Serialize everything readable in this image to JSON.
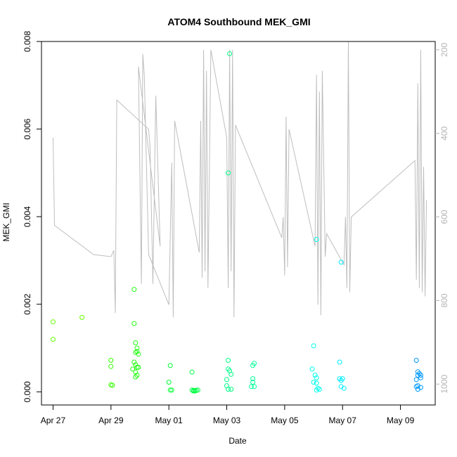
{
  "chart_data": {
    "type": "scatter",
    "title": "ATOM4 Southbound MEK_GMI",
    "xlabel": "Date",
    "ylabel": "MEK_GMI",
    "x_tick_labels": [
      "Apr 27",
      "Apr 29",
      "May 01",
      "May 03",
      "May 05",
      "May 07",
      "May 09"
    ],
    "x_ticks_day": [
      27,
      29,
      31,
      33,
      35,
      37,
      39
    ],
    "xlim_day": [
      26.6,
      40.2
    ],
    "ylim": [
      -0.0003,
      0.008
    ],
    "y_ticks": [
      0.0,
      0.002,
      0.004,
      0.006,
      0.008
    ],
    "y_tick_labels": [
      "0.000",
      "0.002",
      "0.004",
      "0.006",
      "0.008"
    ],
    "y2_lim": [
      1050,
      180
    ],
    "y2_ticks": [
      200,
      400,
      600,
      800,
      1000
    ],
    "y2_tick_labels": [
      "200",
      "400",
      "600",
      "800",
      "1000"
    ],
    "line_color": "#bebebe",
    "series": [
      {
        "kind": "points",
        "values": [
          [
            27.0,
            0.0016,
            "#66ff00"
          ],
          [
            27.0,
            0.0012,
            "#66ff00"
          ],
          [
            28.0,
            0.0017,
            "#66ff00"
          ],
          [
            29.0,
            0.00072,
            "#33ff00"
          ],
          [
            29.0,
            0.00058,
            "#33ff00"
          ],
          [
            29.05,
            0.00015,
            "#33ff00"
          ],
          [
            29.0,
            0.00016,
            "#33ff00"
          ],
          [
            29.8,
            0.00234,
            "#22ff11"
          ],
          [
            29.8,
            0.00156,
            "#22ff11"
          ],
          [
            29.85,
            0.00112,
            "#22ff11"
          ],
          [
            29.9,
            0.001,
            "#22ff11"
          ],
          [
            29.9,
            0.00092,
            "#22ff11"
          ],
          [
            29.85,
            0.0009,
            "#22ff11"
          ],
          [
            29.95,
            0.00086,
            "#22ff11"
          ],
          [
            29.8,
            0.00068,
            "#22ff11"
          ],
          [
            29.85,
            0.00062,
            "#22ff11"
          ],
          [
            29.9,
            0.00056,
            "#22ff11"
          ],
          [
            29.95,
            0.00056,
            "#22ff11"
          ],
          [
            29.75,
            0.00052,
            "#22ff11"
          ],
          [
            29.85,
            0.00045,
            "#22ff11"
          ],
          [
            29.9,
            0.00038,
            "#22ff11"
          ],
          [
            29.85,
            0.00034,
            "#22ff11"
          ],
          [
            31.05,
            0.0006,
            "#00ff33"
          ],
          [
            31.0,
            0.00022,
            "#00ff33"
          ],
          [
            31.05,
            4e-05,
            "#00ff33"
          ],
          [
            31.1,
            4e-05,
            "#00ff33"
          ],
          [
            31.8,
            0.00045,
            "#00ff44"
          ],
          [
            31.8,
            4e-05,
            "#00ff44"
          ],
          [
            31.85,
            3e-05,
            "#00ff44"
          ],
          [
            31.9,
            3e-05,
            "#00ff44"
          ],
          [
            31.95,
            3e-05,
            "#00ff44"
          ],
          [
            32.0,
            4e-05,
            "#00ff44"
          ],
          [
            31.85,
            2e-05,
            "#00ff44"
          ],
          [
            31.9,
            2e-05,
            "#00ff44"
          ],
          [
            33.1,
            0.00772,
            "#00ff88"
          ],
          [
            33.05,
            0.005,
            "#00ff88"
          ],
          [
            33.05,
            0.00072,
            "#00ff88"
          ],
          [
            33.05,
            0.00052,
            "#00ff88"
          ],
          [
            33.1,
            0.00048,
            "#00ff88"
          ],
          [
            33.15,
            0.0004,
            "#00ff88"
          ],
          [
            33.0,
            0.00028,
            "#00ff88"
          ],
          [
            33.0,
            0.00014,
            "#00ff88"
          ],
          [
            33.05,
            6e-05,
            "#00ff88"
          ],
          [
            33.15,
            6e-05,
            "#00ff88"
          ],
          [
            33.95,
            0.00065,
            "#00ff99"
          ],
          [
            33.9,
            0.0006,
            "#00ff99"
          ],
          [
            33.9,
            0.0003,
            "#00ff99"
          ],
          [
            33.9,
            0.00022,
            "#00ff99"
          ],
          [
            33.85,
            0.00012,
            "#00ff99"
          ],
          [
            33.95,
            0.00012,
            "#00ff99"
          ],
          [
            36.0,
            0.00105,
            "#00ffee"
          ],
          [
            35.95,
            0.00052,
            "#00ffee"
          ],
          [
            36.1,
            0.00348,
            "#00ffee"
          ],
          [
            36.05,
            0.00038,
            "#00ffee"
          ],
          [
            36.1,
            0.00032,
            "#00ffee"
          ],
          [
            36.0,
            0.00022,
            "#00ffee"
          ],
          [
            36.1,
            0.0002,
            "#00ffee"
          ],
          [
            36.15,
            8e-05,
            "#00ffee"
          ],
          [
            36.2,
            6e-05,
            "#00ffee"
          ],
          [
            36.1,
            4e-05,
            "#00ffee"
          ],
          [
            36.95,
            0.00296,
            "#00eeff"
          ],
          [
            36.9,
            0.00068,
            "#00eeff"
          ],
          [
            36.9,
            0.0003,
            "#00eeff"
          ],
          [
            36.95,
            0.00026,
            "#00eeff"
          ],
          [
            37.0,
            0.0003,
            "#00eeff"
          ],
          [
            36.95,
            0.00012,
            "#00eeff"
          ],
          [
            37.05,
            8e-05,
            "#00eeff"
          ],
          [
            39.55,
            0.00072,
            "#0099ff"
          ],
          [
            39.6,
            0.00046,
            "#0099ff"
          ],
          [
            39.65,
            0.00042,
            "#0099ff"
          ],
          [
            39.6,
            0.00038,
            "#0099ff"
          ],
          [
            39.7,
            0.00038,
            "#0099ff"
          ],
          [
            39.7,
            0.00032,
            "#0099ff"
          ],
          [
            39.55,
            0.00028,
            "#0099ff"
          ],
          [
            39.6,
            0.00014,
            "#0099ff"
          ],
          [
            39.55,
            0.00012,
            "#0099ff"
          ],
          [
            39.7,
            0.0001,
            "#0099ff"
          ],
          [
            39.6,
            6e-05,
            "#0099ff"
          ]
        ]
      },
      {
        "kind": "line_pressure",
        "values": [
          [
            27.0,
            410
          ],
          [
            27.05,
            620
          ],
          [
            28.4,
            690
          ],
          [
            29.0,
            695
          ],
          [
            29.1,
            680
          ],
          [
            29.15,
            830
          ],
          [
            29.2,
            320
          ],
          [
            30.3,
            390
          ],
          [
            30.35,
            430
          ],
          [
            30.45,
            760
          ],
          [
            30.55,
            310
          ],
          [
            30.7,
            670
          ],
          [
            29.95,
            240
          ],
          [
            30.05,
            760
          ],
          [
            30.1,
            210
          ],
          [
            30.15,
            260
          ],
          [
            30.3,
            690
          ],
          [
            31.0,
            810
          ],
          [
            31.1,
            470
          ],
          [
            31.15,
            840
          ],
          [
            31.2,
            370
          ],
          [
            32.05,
            685
          ],
          [
            32.1,
            370
          ],
          [
            32.15,
            745
          ],
          [
            32.2,
            200
          ],
          [
            32.25,
            730
          ],
          [
            32.3,
            250
          ],
          [
            32.35,
            770
          ],
          [
            32.45,
            200
          ],
          [
            33.0,
            410
          ],
          [
            33.05,
            770
          ],
          [
            33.1,
            200
          ],
          [
            33.15,
            730
          ],
          [
            33.2,
            200
          ],
          [
            33.25,
            840
          ],
          [
            33.3,
            380
          ],
          [
            34.9,
            650
          ],
          [
            34.95,
            600
          ],
          [
            35.0,
            740
          ],
          [
            35.05,
            360
          ],
          [
            35.1,
            720
          ],
          [
            35.15,
            390
          ],
          [
            36.05,
            670
          ],
          [
            36.1,
            260
          ],
          [
            36.15,
            810
          ],
          [
            36.2,
            300
          ],
          [
            36.25,
            835
          ],
          [
            36.3,
            250
          ],
          [
            36.4,
            695
          ],
          [
            36.45,
            640
          ],
          [
            37.05,
            715
          ],
          [
            37.1,
            600
          ],
          [
            37.15,
            770
          ],
          [
            37.2,
            180
          ],
          [
            37.25,
            780
          ],
          [
            37.3,
            600
          ],
          [
            39.5,
            465
          ],
          [
            39.55,
            750
          ],
          [
            39.6,
            280
          ],
          [
            39.65,
            770
          ],
          [
            39.7,
            200
          ],
          [
            39.75,
            780
          ],
          [
            39.8,
            480
          ],
          [
            39.85,
            790
          ],
          [
            39.9,
            560
          ]
        ]
      }
    ]
  }
}
